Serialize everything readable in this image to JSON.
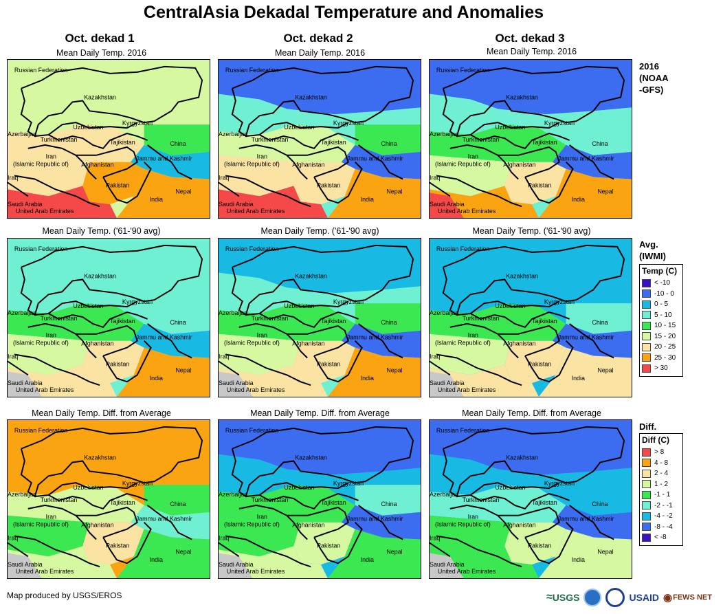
{
  "title": "CentralAsia Dekadal Temperature and Anomalies",
  "columns": [
    "Oct. dekad 1",
    "Oct. dekad 2",
    "Oct. dekad 3"
  ],
  "rows": [
    {
      "caption": "Mean Daily Temp. 2016",
      "side_label": [
        "2016",
        "(NOAA",
        "-GFS)"
      ]
    },
    {
      "caption": "Mean Daily Temp. ('61-'90 avg)",
      "side_label": [
        "Avg.",
        "(IWMI)"
      ]
    },
    {
      "caption": "Mean Daily Temp. Diff. from Average",
      "side_label": [
        "Diff."
      ]
    }
  ],
  "map_labels": {
    "russia": "Russian Federation",
    "kazakhstan": "Kazakhstan",
    "uzbekistan": "Uzbekistan",
    "kyrgyzstan": "Kyrgyzstan",
    "azerbaijan": "Azerbaijan",
    "turkmenistan": "Turkmenistan",
    "tajikistan": "Tajikistan",
    "china": "China",
    "iran": "Iran",
    "iran_sub": "(Islamic Republic of)",
    "afghanistan": "Afghanistan",
    "jammu": "Jammu and Kashmir",
    "iraq": "Iraq",
    "pakistan": "Pakistan",
    "nepal": "Nepal",
    "india": "India",
    "saudi": "Saudi Arabia",
    "uae": "United Arab Emirates"
  },
  "temp_legend": {
    "title": "Temp (C)",
    "items": [
      {
        "label": "< -10",
        "color": "#3a12c6"
      },
      {
        "label": "-10 - 0",
        "color": "#3c6df0"
      },
      {
        "label": "0 - 5",
        "color": "#18b9e3"
      },
      {
        "label": "5 - 10",
        "color": "#6ff0d2"
      },
      {
        "label": "10 - 15",
        "color": "#3ce852"
      },
      {
        "label": "15 - 20",
        "color": "#d5f8a0"
      },
      {
        "label": "20 - 25",
        "color": "#fbe3a4"
      },
      {
        "label": "25 - 30",
        "color": "#fba412"
      },
      {
        "label": "> 30",
        "color": "#f54848"
      }
    ]
  },
  "diff_legend": {
    "title": "Diff (C)",
    "items": [
      {
        "label": "> 8",
        "color": "#f54848"
      },
      {
        "label": "4 - 8",
        "color": "#fba412"
      },
      {
        "label": "2 - 4",
        "color": "#fbe3a4"
      },
      {
        "label": "1 - 2",
        "color": "#d5f8a0"
      },
      {
        "label": "-1 - 1",
        "color": "#3ce852"
      },
      {
        "label": "-2 - -1",
        "color": "#6ff0d2"
      },
      {
        "label": "-4 - -2",
        "color": "#18b9e3"
      },
      {
        "label": "-8 - -4",
        "color": "#3c6df0"
      },
      {
        "label": "< -8",
        "color": "#3a12c6"
      }
    ]
  },
  "credit": "Map produced by USGS/EROS",
  "logos": {
    "usgs": "USGS",
    "usaid": "USAID",
    "fewsnet": "FEWS NET"
  }
}
